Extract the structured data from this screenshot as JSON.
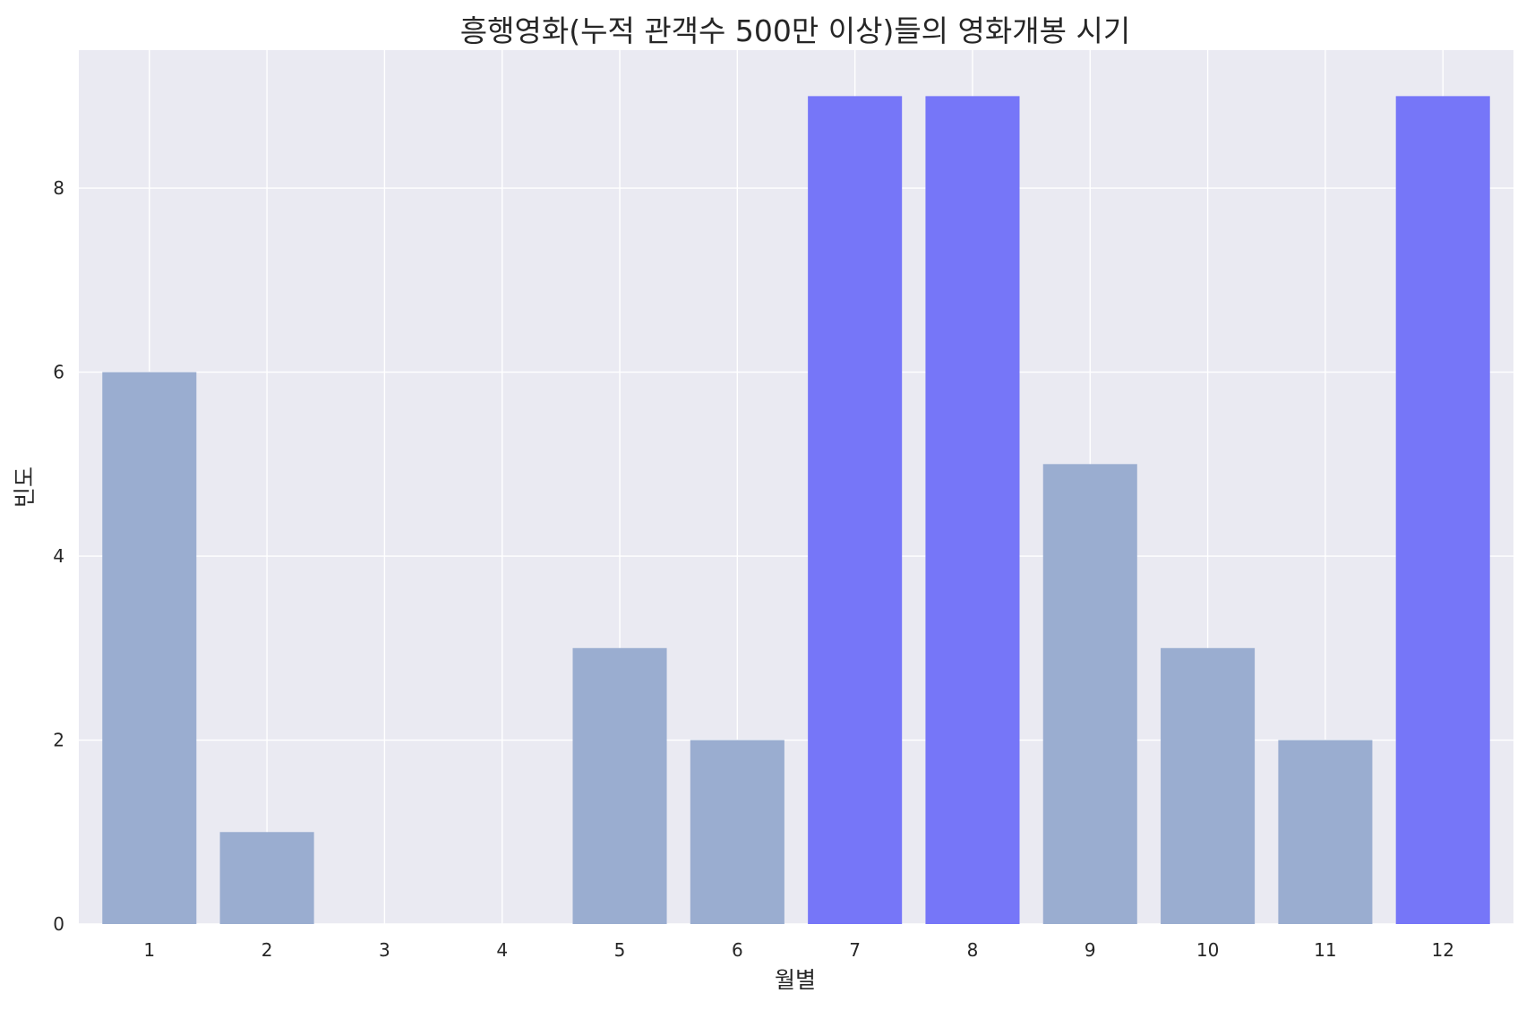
{
  "chart_data": {
    "type": "bar",
    "title": "흥행영화(누적 관객수 500만 이상)들의 영화개봉 시기",
    "xlabel": "월별",
    "ylabel": "빈도",
    "categories": [
      "1",
      "2",
      "3",
      "4",
      "5",
      "6",
      "7",
      "8",
      "9",
      "10",
      "11",
      "12"
    ],
    "values": [
      6,
      1,
      0,
      0,
      3,
      2,
      9,
      9,
      5,
      3,
      2,
      9
    ],
    "highlighted": [
      "7",
      "8",
      "12"
    ],
    "ylim": [
      0,
      9.5
    ],
    "yticks": [
      0,
      2,
      4,
      6,
      8
    ],
    "grid": true,
    "colors": {
      "background": "#eaeaf2",
      "bar": "#9aadd0",
      "highlight": "#7676f8"
    }
  }
}
